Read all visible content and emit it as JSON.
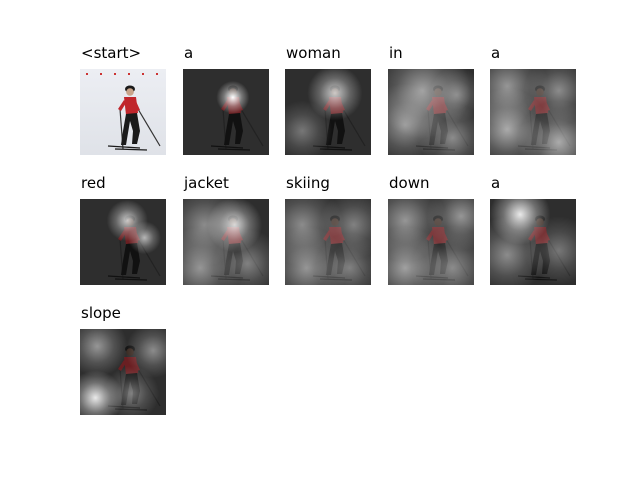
{
  "tokens": [
    {
      "word": "<start>",
      "image": "skier-photo",
      "attention": []
    },
    {
      "word": "a",
      "image": "skier-attention-map",
      "attention": [
        [
          0.58,
          0.33,
          0.12,
          1.0
        ]
      ]
    },
    {
      "word": "woman",
      "image": "skier-attention-map",
      "attention": [
        [
          0.58,
          0.28,
          0.2,
          0.75
        ],
        [
          0.2,
          0.72,
          0.22,
          0.35
        ]
      ]
    },
    {
      "word": "in",
      "image": "skier-attention-map",
      "attention": [
        [
          0.4,
          0.25,
          0.35,
          0.55
        ],
        [
          0.2,
          0.65,
          0.3,
          0.5
        ],
        [
          0.8,
          0.3,
          0.2,
          0.4
        ],
        [
          0.75,
          0.8,
          0.25,
          0.45
        ]
      ]
    },
    {
      "word": "a",
      "image": "skier-attention-map",
      "attention": [
        [
          0.2,
          0.2,
          0.3,
          0.5
        ],
        [
          0.2,
          0.7,
          0.3,
          0.6
        ],
        [
          0.8,
          0.25,
          0.25,
          0.45
        ],
        [
          0.8,
          0.85,
          0.3,
          0.6
        ]
      ]
    },
    {
      "word": "red",
      "image": "skier-attention-map",
      "attention": [
        [
          0.55,
          0.25,
          0.15,
          0.75
        ],
        [
          0.75,
          0.45,
          0.12,
          0.65
        ]
      ]
    },
    {
      "word": "jacket",
      "image": "skier-attention-map",
      "attention": [
        [
          0.6,
          0.3,
          0.2,
          0.8
        ],
        [
          0.25,
          0.3,
          0.3,
          0.45
        ],
        [
          0.2,
          0.8,
          0.3,
          0.5
        ],
        [
          0.75,
          0.75,
          0.25,
          0.4
        ]
      ]
    },
    {
      "word": "skiing",
      "image": "skier-attention-map",
      "attention": [
        [
          0.2,
          0.3,
          0.3,
          0.45
        ],
        [
          0.25,
          0.8,
          0.3,
          0.5
        ],
        [
          0.8,
          0.3,
          0.25,
          0.4
        ],
        [
          0.75,
          0.8,
          0.25,
          0.4
        ]
      ]
    },
    {
      "word": "down",
      "image": "skier-attention-map",
      "attention": [
        [
          0.2,
          0.25,
          0.3,
          0.5
        ],
        [
          0.2,
          0.8,
          0.3,
          0.55
        ],
        [
          0.85,
          0.2,
          0.25,
          0.5
        ],
        [
          0.75,
          0.8,
          0.3,
          0.45
        ]
      ]
    },
    {
      "word": "a",
      "image": "skier-attention-map",
      "attention": [
        [
          0.35,
          0.18,
          0.22,
          0.9
        ],
        [
          0.2,
          0.65,
          0.28,
          0.45
        ],
        [
          0.8,
          0.6,
          0.25,
          0.35
        ]
      ]
    },
    {
      "word": "slope",
      "image": "skier-attention-map",
      "attention": [
        [
          0.2,
          0.2,
          0.22,
          0.5
        ],
        [
          0.18,
          0.8,
          0.2,
          0.9
        ],
        [
          0.85,
          0.25,
          0.2,
          0.45
        ],
        [
          0.6,
          0.75,
          0.2,
          0.4
        ]
      ]
    }
  ]
}
